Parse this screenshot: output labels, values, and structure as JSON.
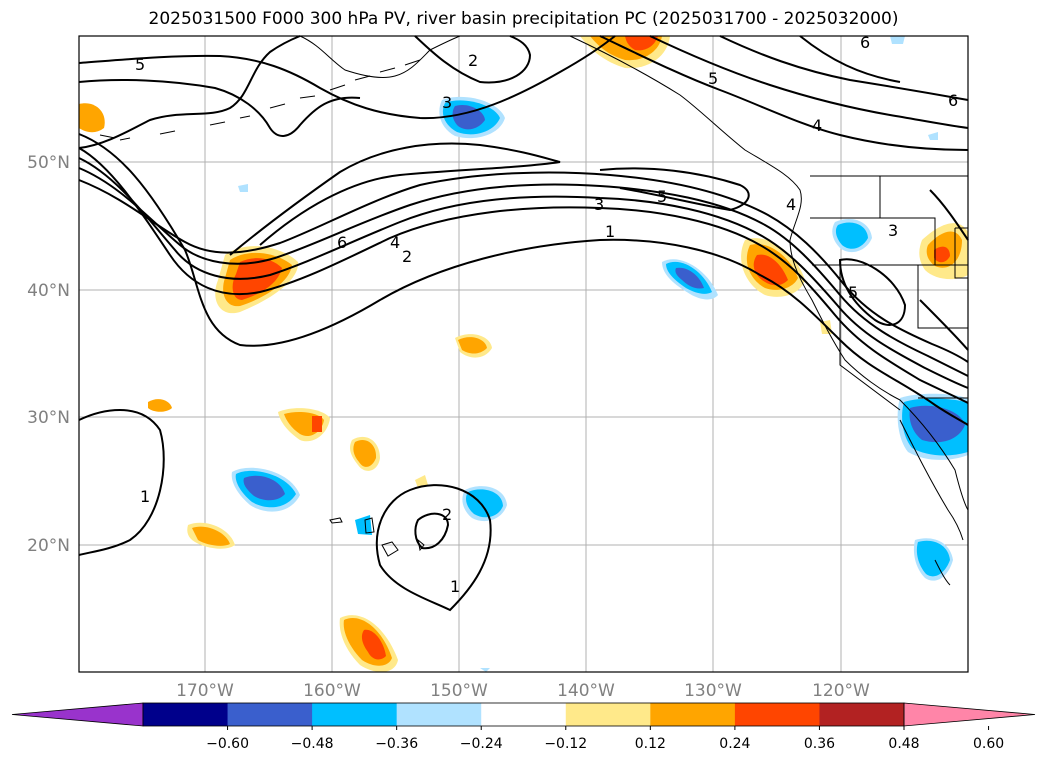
{
  "title": "2025031500 F000 300 hPa PV, river basin precipitation PC (2025031700 - 2025032000)",
  "map": {
    "lat_ticks": [
      "50°N",
      "40°N",
      "30°N",
      "20°N"
    ],
    "lon_ticks": [
      "170°W",
      "160°W",
      "150°W",
      "140°W",
      "130°W",
      "120°W"
    ],
    "gridlines": true,
    "contour_labels": [
      "5",
      "2",
      "3",
      "5",
      "4",
      "6",
      "6",
      "4",
      "2",
      "3",
      "5",
      "1",
      "4",
      "3",
      "5",
      "1",
      "1",
      "2"
    ]
  },
  "colorbar": {
    "ticks": [
      "−0.60",
      "−0.48",
      "−0.36",
      "−0.24",
      "−0.12",
      "0.12",
      "0.24",
      "0.36",
      "0.48",
      "0.60"
    ],
    "colors": [
      "#9933cc",
      "#00008b",
      "#3a5fcd",
      "#00bfff",
      "#b0e2ff",
      "#ffffff",
      "#ffe98a",
      "#ffa500",
      "#ff4500",
      "#b22222",
      "#ff85a8"
    ],
    "extend": "both"
  }
}
